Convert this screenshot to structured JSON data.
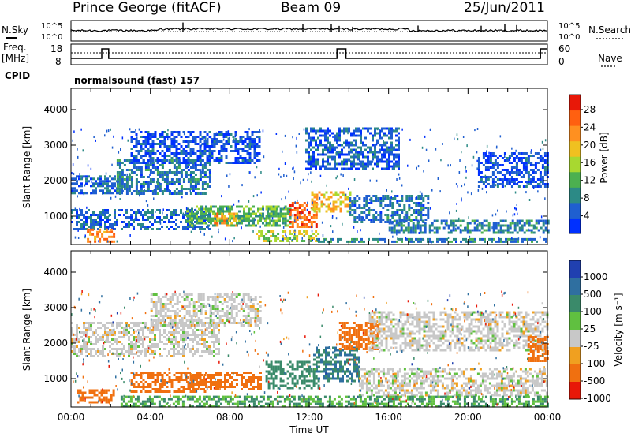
{
  "header": {
    "station": "Prince George (fitACF)",
    "beam": "Beam 09",
    "date": "25/Jun/2011"
  },
  "side_labels": {
    "nsky": "N.Sky",
    "nsearch": "N.Search",
    "freq_line1": "Freq.",
    "freq_line2": "[MHz]",
    "nave": "Nave",
    "cpid": "CPID"
  },
  "noise_panel": {
    "left_ticks": [
      "10^5",
      "10^0"
    ],
    "right_ticks": [
      "10^5",
      "10^0"
    ]
  },
  "freq_panel": {
    "left_ticks": [
      "18",
      "8"
    ],
    "right_ticks": [
      "60",
      "0"
    ],
    "freq_series": [
      {
        "x": 0.0,
        "y": 10
      },
      {
        "x": 1.55,
        "y": 10
      },
      {
        "x": 1.55,
        "y": 12
      },
      {
        "x": 1.9,
        "y": 12
      },
      {
        "x": 1.9,
        "y": 10
      },
      {
        "x": 13.4,
        "y": 10
      },
      {
        "x": 13.4,
        "y": 12
      },
      {
        "x": 13.85,
        "y": 12
      },
      {
        "x": 13.85,
        "y": 10
      },
      {
        "x": 23.65,
        "y": 10
      },
      {
        "x": 23.65,
        "y": 12
      },
      {
        "x": 24.0,
        "y": 12
      }
    ]
  },
  "cpid_text": "normalsound (fast) 157",
  "chart_data": [
    {
      "type": "heatmap",
      "name": "power",
      "xlabel": "",
      "ylabel": "Slant Range [km]",
      "xlim": [
        0,
        24
      ],
      "ylim": [
        200,
        4600
      ],
      "yticks": [
        "1000",
        "2000",
        "3000",
        "4000"
      ],
      "colorbar": {
        "label": "Power [dB]",
        "ticks": [
          "4",
          "8",
          "12",
          "16",
          "20",
          "24",
          "28"
        ],
        "colors": [
          "#0030ff",
          "#1f5fd0",
          "#2c8a86",
          "#4cb050",
          "#a8d830",
          "#f0c020",
          "#ff9020",
          "#ff6010",
          "#e81808"
        ]
      },
      "regions": [
        {
          "t0": 0.0,
          "t1": 2.6,
          "r0": 1650,
          "r1": 2150,
          "level": 8
        },
        {
          "t0": 2.3,
          "t1": 7.0,
          "r0": 1650,
          "r1": 2600,
          "level": 9
        },
        {
          "t0": 3.0,
          "t1": 9.5,
          "r0": 2500,
          "r1": 3400,
          "level": 6
        },
        {
          "t0": 0.0,
          "t1": 7.0,
          "r0": 600,
          "r1": 1200,
          "level": 8
        },
        {
          "t0": 0.8,
          "t1": 2.2,
          "r0": 300,
          "r1": 650,
          "level": 26
        },
        {
          "t0": 5.8,
          "t1": 10.5,
          "r0": 700,
          "r1": 1300,
          "level": 14
        },
        {
          "t0": 7.2,
          "t1": 8.3,
          "r0": 750,
          "r1": 1100,
          "level": 24
        },
        {
          "t0": 9.8,
          "t1": 11.0,
          "r0": 700,
          "r1": 1300,
          "level": 14
        },
        {
          "t0": 11.0,
          "t1": 12.4,
          "r0": 700,
          "r1": 1400,
          "level": 27
        },
        {
          "t0": 12.1,
          "t1": 14.1,
          "r0": 1100,
          "r1": 1700,
          "level": 22
        },
        {
          "t0": 9.3,
          "t1": 12.5,
          "r0": 280,
          "r1": 600,
          "level": 18
        },
        {
          "t0": 11.8,
          "t1": 16.5,
          "r0": 2300,
          "r1": 3500,
          "level": 7
        },
        {
          "t0": 14.0,
          "t1": 18.0,
          "r0": 800,
          "r1": 1600,
          "level": 9
        },
        {
          "t0": 16.0,
          "t1": 24.0,
          "r0": 550,
          "r1": 900,
          "level": 10
        },
        {
          "t0": 20.5,
          "t1": 24.0,
          "r0": 1800,
          "r1": 2800,
          "level": 6
        },
        {
          "t0": 12.2,
          "t1": 24.0,
          "r0": 250,
          "r1": 380,
          "level": 10
        }
      ]
    },
    {
      "type": "heatmap",
      "name": "velocity",
      "xlabel": "Time UT",
      "ylabel": "Slant Range [km]",
      "xlim": [
        0,
        24
      ],
      "ylim": [
        200,
        4600
      ],
      "xticks": [
        "00:00",
        "04:00",
        "08:00",
        "12:00",
        "16:00",
        "20:00",
        "00:00"
      ],
      "yticks": [
        "1000",
        "2000",
        "3000",
        "4000"
      ],
      "colorbar": {
        "label": "Velocity [m s⁻¹]",
        "ticks": [
          "1000",
          "500",
          "100",
          "25",
          "-25",
          "-100",
          "-500",
          "-1000"
        ],
        "colors": [
          "#2040b0",
          "#2f6fa0",
          "#3a8a6a",
          "#60c040",
          "#c8c8c8",
          "#f0a020",
          "#f07010",
          "#e81808"
        ]
      },
      "regions": [
        {
          "t0": 0.0,
          "t1": 7.5,
          "r0": 1600,
          "r1": 2600,
          "velocity": 0
        },
        {
          "t0": 4.0,
          "t1": 9.5,
          "r0": 2500,
          "r1": 3400,
          "velocity": 0
        },
        {
          "t0": 0.3,
          "t1": 2.2,
          "r0": 300,
          "r1": 700,
          "velocity": -150
        },
        {
          "t0": 3.0,
          "t1": 6.8,
          "r0": 600,
          "r1": 1200,
          "velocity": -150
        },
        {
          "t0": 5.8,
          "t1": 9.5,
          "r0": 700,
          "r1": 1200,
          "velocity": -150
        },
        {
          "t0": 9.8,
          "t1": 12.5,
          "r0": 700,
          "r1": 1500,
          "velocity": 200
        },
        {
          "t0": 12.2,
          "t1": 14.5,
          "r0": 900,
          "r1": 1900,
          "velocity": 300
        },
        {
          "t0": 13.5,
          "t1": 15.5,
          "r0": 1800,
          "r1": 2600,
          "velocity": -300
        },
        {
          "t0": 14.5,
          "t1": 24.0,
          "r0": 500,
          "r1": 1300,
          "velocity": 0
        },
        {
          "t0": 15.0,
          "t1": 24.0,
          "r0": 1800,
          "r1": 2900,
          "velocity": 0
        },
        {
          "t0": 2.5,
          "t1": 24.0,
          "r0": 200,
          "r1": 520,
          "velocity": 60
        },
        {
          "t0": 23.0,
          "t1": 24.0,
          "r0": 1500,
          "r1": 2200,
          "velocity": -200
        }
      ]
    }
  ]
}
